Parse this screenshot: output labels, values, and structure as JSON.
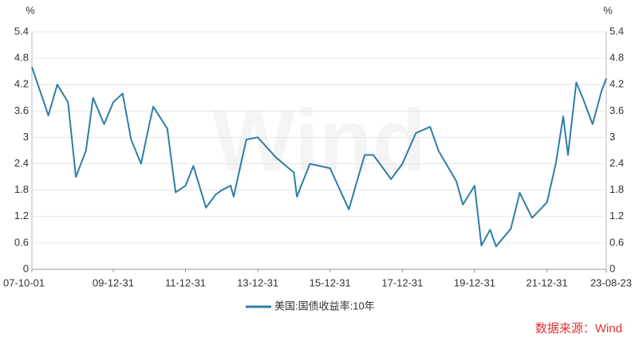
{
  "chart_data": {
    "type": "line",
    "y_unit": "%",
    "y2_unit": "%",
    "watermark": "Wind",
    "source": "数据来源：Wind",
    "x": [
      "07-10-01",
      "07-12-31",
      "08-03-15",
      "08-06-13",
      "08-09-30",
      "08-12-18",
      "09-03-31",
      "09-06-10",
      "09-09-30",
      "09-12-31",
      "10-04-05",
      "10-06-30",
      "10-10-08",
      "10-12-31",
      "11-02-08",
      "11-06-30",
      "11-09-22",
      "11-12-31",
      "12-03-20",
      "12-07-25",
      "12-10-31",
      "12-12-31",
      "13-03-31",
      "13-05-01",
      "13-09-05",
      "13-12-31",
      "14-06-30",
      "14-12-31",
      "15-01-30",
      "15-06-10",
      "15-12-31",
      "16-07-08",
      "16-12-15",
      "17-03-13",
      "17-09-08",
      "17-12-31",
      "18-05-17",
      "18-10-08",
      "18-12-31",
      "19-06-30",
      "19-09-03",
      "19-12-31",
      "20-03-09",
      "20-06-05",
      "20-08-04",
      "20-12-31",
      "21-03-31",
      "21-08-03",
      "21-12-31",
      "22-03-31",
      "22-06-14",
      "22-08-01",
      "22-10-24",
      "22-12-31",
      "23-04-06",
      "23-07-06",
      "23-08-23"
    ],
    "series": [
      {
        "name": "美国:国债收益率:10年",
        "color": "#2e7ea6",
        "axis": "y",
        "values": [
          4.6,
          4.0,
          3.5,
          4.2,
          3.8,
          2.1,
          2.7,
          3.9,
          3.3,
          3.8,
          4.0,
          2.95,
          2.4,
          3.3,
          3.7,
          3.2,
          1.75,
          1.9,
          2.35,
          1.4,
          1.7,
          1.8,
          1.9,
          1.65,
          2.95,
          3.0,
          2.55,
          2.2,
          1.65,
          2.4,
          2.3,
          1.36,
          2.6,
          2.6,
          2.05,
          2.4,
          3.1,
          3.24,
          2.7,
          2.0,
          1.47,
          1.9,
          0.54,
          0.9,
          0.52,
          0.92,
          1.74,
          1.17,
          1.52,
          2.4,
          3.48,
          2.6,
          4.25,
          3.88,
          3.3,
          4.05,
          4.34
        ]
      }
    ],
    "xlim": [
      "07-10-01",
      "23-08-23"
    ],
    "xticks": [
      "07-10-01",
      "09-12-31",
      "11-12-31",
      "13-12-31",
      "15-12-31",
      "17-12-31",
      "19-12-31",
      "21-12-31",
      "23-08-23"
    ],
    "ylim": [
      0,
      5.4
    ],
    "yticks": [
      0,
      0.6,
      1.2,
      1.8,
      2.4,
      3,
      3.6,
      4.2,
      4.8,
      5.4
    ],
    "y2lim": [
      0,
      5.4
    ],
    "y2ticks": [
      0,
      0.6,
      1.2,
      1.8,
      2.4,
      3,
      3.6,
      4.2,
      4.8,
      5.4
    ],
    "grid": true
  }
}
